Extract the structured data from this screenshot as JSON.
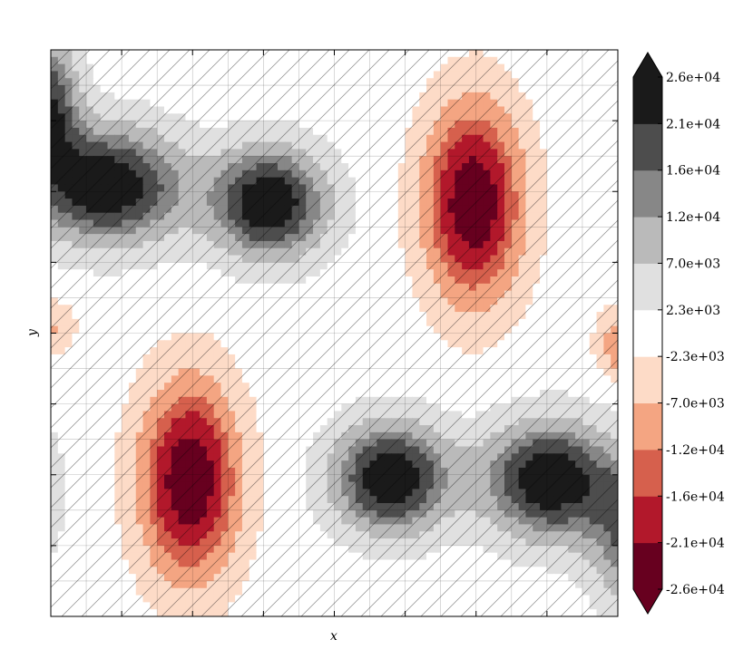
{
  "chart_data": {
    "type": "heatmap",
    "subtype": "filled-contour",
    "xlabel": "x",
    "ylabel": "y",
    "grid": true,
    "hatching": "diagonal",
    "colorbar": {
      "extend": "both",
      "tick_labels": [
        "2.6e+04",
        "2.1e+04",
        "1.6e+04",
        "1.2e+04",
        "7.0e+03",
        "2.3e+03",
        "-2.3e+03",
        "-7.0e+03",
        "-1.2e+04",
        "-1.6e+04",
        "-2.1e+04",
        "-2.6e+04"
      ],
      "levels": [
        -26000,
        -21000,
        -16000,
        -12000,
        -7000,
        -2300,
        2300,
        7000,
        12000,
        16000,
        21000,
        26000
      ]
    },
    "colors": {
      "positive": [
        "#ffffff",
        "#e0e0e0",
        "#bababa",
        "#878787",
        "#4d4d4d",
        "#1a1a1a"
      ],
      "negative": [
        "#fddbc7",
        "#f4a582",
        "#d6604d",
        "#b2182b",
        "#67001f"
      ]
    },
    "features": [
      {
        "kind": "min",
        "peak": -26000,
        "cx": 0.245,
        "cy": 0.76,
        "sx": 0.085,
        "sy": 0.17
      },
      {
        "kind": "min",
        "peak": -26000,
        "cx": 0.745,
        "cy": 0.27,
        "sx": 0.085,
        "sy": 0.17
      },
      {
        "kind": "max",
        "peak": 26000,
        "cx": 0.6,
        "cy": 0.755,
        "sx": 0.1,
        "sy": 0.095
      },
      {
        "kind": "max",
        "peak": 26000,
        "cx": 0.88,
        "cy": 0.76,
        "sx": 0.115,
        "sy": 0.1
      },
      {
        "kind": "max",
        "peak": 26000,
        "cx": 0.385,
        "cy": 0.27,
        "sx": 0.1,
        "sy": 0.095
      },
      {
        "kind": "max",
        "peak": 26000,
        "cx": 0.1,
        "cy": 0.24,
        "sx": 0.13,
        "sy": 0.1
      },
      {
        "kind": "max",
        "peak": 24000,
        "cx": 1.06,
        "cy": 0.86,
        "sx": 0.09,
        "sy": 0.12
      },
      {
        "kind": "max",
        "peak": 22000,
        "cx": -0.06,
        "cy": 0.78,
        "sx": 0.06,
        "sy": 0.1
      },
      {
        "kind": "min",
        "peak": -14000,
        "cx": 1.02,
        "cy": 0.52,
        "sx": 0.05,
        "sy": 0.06
      },
      {
        "kind": "min",
        "peak": -8000,
        "cx": -0.01,
        "cy": 0.49,
        "sx": 0.05,
        "sy": 0.05
      },
      {
        "kind": "max",
        "peak": 20000,
        "cx": 0.0,
        "cy": 0.1,
        "sx": 0.05,
        "sy": 0.12
      }
    ]
  }
}
